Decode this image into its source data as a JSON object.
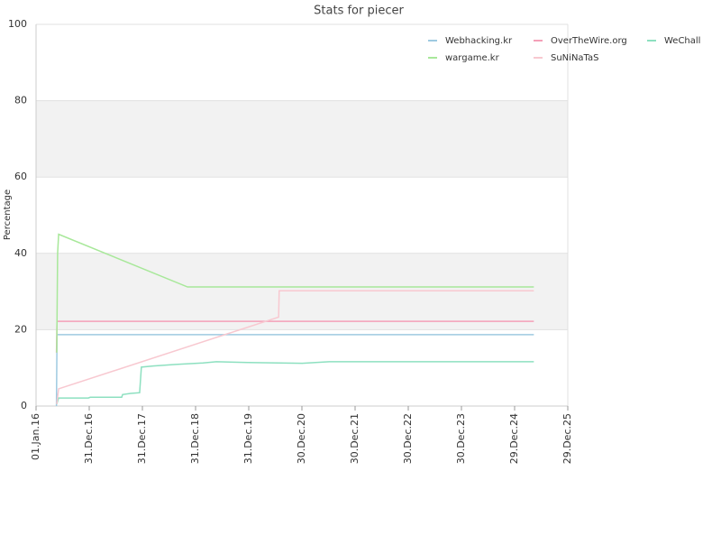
{
  "chart_data": {
    "type": "line",
    "title": "Stats for piecer",
    "y_label": "Percentage",
    "xlim": [
      "2016-01-01",
      "2025-12-29"
    ],
    "xticks": [
      {
        "value": "2016-01-01",
        "label": "01.Jan.16"
      },
      {
        "value": "2016-12-31",
        "label": "31.Dec.16"
      },
      {
        "value": "2017-12-31",
        "label": "31.Dec.17"
      },
      {
        "value": "2018-12-31",
        "label": "31.Dec.18"
      },
      {
        "value": "2019-12-31",
        "label": "31.Dec.19"
      },
      {
        "value": "2020-12-30",
        "label": "30.Dec.20"
      },
      {
        "value": "2021-12-30",
        "label": "30.Dec.21"
      },
      {
        "value": "2022-12-30",
        "label": "30.Dec.22"
      },
      {
        "value": "2023-12-30",
        "label": "30.Dec.23"
      },
      {
        "value": "2024-12-29",
        "label": "29.Dec.24"
      },
      {
        "value": "2025-12-29",
        "label": "29.Dec.25"
      }
    ],
    "ylim": [
      0,
      100
    ],
    "yticks": [
      0,
      20,
      40,
      60,
      80,
      100
    ],
    "grid": true,
    "series": [
      {
        "name": "Webhacking.kr",
        "color": "#9ecae1",
        "x": [
          "2016-05-20",
          "2016-05-24",
          "2025-05-10"
        ],
        "values": [
          0,
          18.7,
          18.7
        ]
      },
      {
        "name": "OverTheWire.org",
        "color": "#f4a0b8",
        "x": [
          "2016-05-20",
          "2016-05-24",
          "2025-05-10"
        ],
        "values": [
          14,
          22.2,
          22.2
        ]
      },
      {
        "name": "WeChall",
        "color": "#8de0c0",
        "x": [
          "2016-05-22",
          "2016-06-04",
          "2016-12-25",
          "2017-01-07",
          "2017-08-11",
          "2017-08-17",
          "2017-10-11",
          "2017-12-12",
          "2017-12-24",
          "2018-03-14",
          "2018-08-17",
          "2019-02-20",
          "2019-05-23",
          "2019-12-25",
          "2021-01-01",
          "2021-07-05",
          "2025-05-10"
        ],
        "values": [
          0.5,
          2.1,
          2.1,
          2.3,
          2.3,
          3.0,
          3.3,
          3.5,
          10.2,
          10.5,
          10.9,
          11.3,
          11.6,
          11.4,
          11.2,
          11.6,
          11.6
        ]
      },
      {
        "name": "wargame.kr",
        "color": "#a8e89a",
        "x": [
          "2016-05-22",
          "2016-05-28",
          "2016-06-04",
          "2018-11-06",
          "2025-05-10"
        ],
        "values": [
          14,
          40,
          45,
          31.2,
          31.2
        ]
      },
      {
        "name": "SuNiNaTaS",
        "color": "#f8c8d0",
        "x": [
          "2016-05-22",
          "2016-06-04",
          "2020-07-23",
          "2020-07-27",
          "2025-05-10"
        ],
        "values": [
          0.5,
          4.5,
          23.3,
          30.2,
          30.2
        ]
      }
    ]
  }
}
